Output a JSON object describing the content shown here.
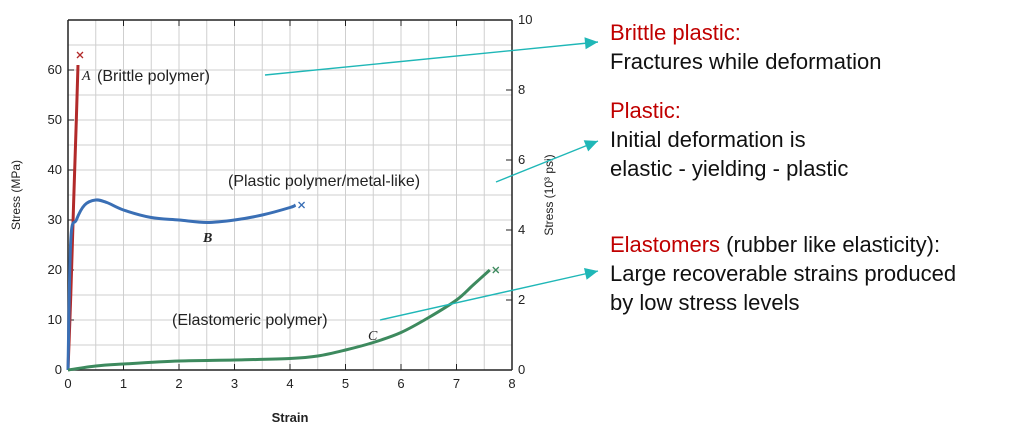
{
  "chart_data": {
    "type": "line",
    "xlabel": "Strain",
    "ylabel": "Stress (MPa)",
    "y2label": "Stress (10³ psi)",
    "xlim": [
      0,
      8
    ],
    "ylim": [
      0,
      70
    ],
    "y2lim": [
      0,
      10
    ],
    "xticks": [
      "0",
      "1",
      "2",
      "3",
      "4",
      "5",
      "6",
      "7",
      "8"
    ],
    "yticks": [
      "0",
      "10",
      "20",
      "30",
      "40",
      "50",
      "60"
    ],
    "y2ticks": [
      "0",
      "2",
      "4",
      "6",
      "8",
      "10"
    ],
    "grid": true,
    "colors": {
      "A": "#b22a2a",
      "B": "#3a6fb5",
      "C": "#3d8a5e",
      "arrow": "#1fb7b7"
    },
    "series": [
      {
        "name": "A",
        "label": "(Brittle polymer)",
        "x": [
          0,
          0.05,
          0.1,
          0.15,
          0.18
        ],
        "y": [
          0,
          15,
          33,
          50,
          61
        ]
      },
      {
        "name": "B",
        "label": "(Plastic polymer/metal-like)",
        "x": [
          0,
          0.05,
          0.15,
          0.3,
          0.5,
          0.7,
          1.0,
          1.5,
          2.0,
          2.5,
          3.0,
          3.5,
          4.0,
          4.1
        ],
        "y": [
          0,
          26,
          30,
          33,
          34,
          33.5,
          32,
          30.5,
          30,
          29.5,
          30,
          31,
          32.5,
          33
        ]
      },
      {
        "name": "C",
        "label": "(Elastomeric polymer)",
        "x": [
          0,
          0.5,
          1,
          2,
          3,
          4,
          4.5,
          5,
          5.5,
          6,
          6.5,
          7,
          7.3,
          7.6
        ],
        "y": [
          0,
          0.8,
          1.2,
          1.8,
          2.0,
          2.3,
          2.8,
          4.0,
          5.5,
          7.5,
          10.5,
          14,
          17,
          20
        ]
      }
    ],
    "annotations": {
      "A": "A (Brittle polymer)",
      "B_label": "B",
      "B_text": "(Plastic polymer/metal-like)",
      "C_label": "C",
      "C_text": "(Elastomeric polymer)"
    }
  },
  "notes": [
    {
      "title": "Brittle plastic:",
      "lines": [
        "Fractures while deformation"
      ]
    },
    {
      "title": "Plastic:",
      "lines": [
        "Initial deformation is",
        "elastic - yielding - plastic"
      ]
    },
    {
      "title": "Elastomers",
      "title_rest": " (rubber like elasticity):",
      "lines": [
        "Large recoverable strains produced",
        "by low stress levels"
      ]
    }
  ]
}
